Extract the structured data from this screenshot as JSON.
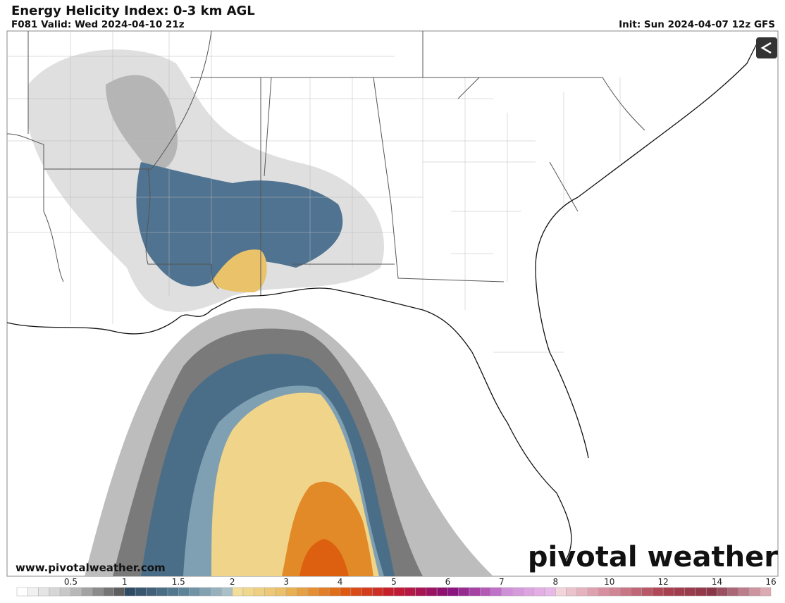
{
  "header": {
    "title": "Energy Helicity Index: 0-3 km AGL",
    "valid": "F081 Valid: Wed 2024-04-10 21z",
    "init": "Init: Sun 2024-04-07 12z GFS"
  },
  "map": {
    "website": "www.pivotalweather.com",
    "brand": "pivotal weather"
  },
  "colorbar": {
    "labels": [
      "0.5",
      "1",
      "1.5",
      "2",
      "3",
      "4",
      "5",
      "6",
      "7",
      "8",
      "10",
      "12",
      "14",
      "16"
    ],
    "segments": [
      {
        "from": "#ffffff",
        "to": "#c8c8c8"
      },
      {
        "from": "#b8b8b8",
        "to": "#5e5e5e"
      },
      {
        "from": "#2f4a63",
        "to": "#52788f"
      },
      {
        "from": "#5d8499",
        "to": "#a9c0c9"
      },
      {
        "from": "#f2de98",
        "to": "#ebc06a"
      },
      {
        "from": "#e8b050",
        "to": "#e06d18"
      },
      {
        "from": "#de5a12",
        "to": "#c8202a"
      },
      {
        "from": "#c01a36",
        "to": "#8e1070"
      },
      {
        "from": "#8a1480",
        "to": "#c070c8"
      },
      {
        "from": "#d090d8",
        "to": "#e8b8e8"
      },
      {
        "from": "#f2d4da",
        "to": "#d890a0"
      },
      {
        "from": "#d08494",
        "to": "#b04858"
      },
      {
        "from": "#a84050",
        "to": "#8a3848"
      },
      {
        "from": "#9a5060",
        "to": "#dcaab2"
      }
    ]
  }
}
